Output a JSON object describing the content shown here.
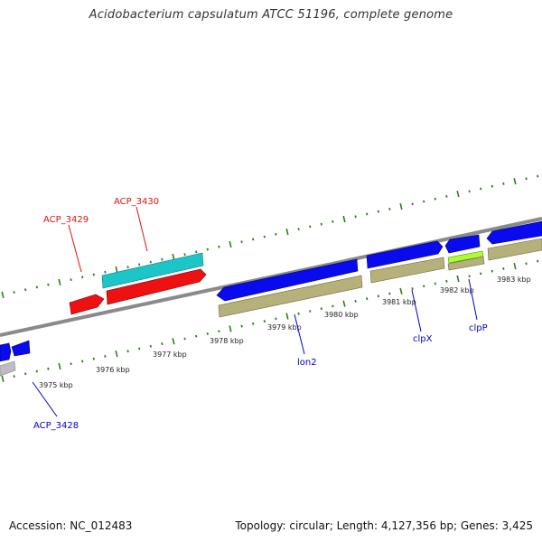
{
  "title": "Acidobacterium capsulatum ATCC 51196, complete genome",
  "footer": {
    "accession": "Accession: NC_012483",
    "summary": "Topology: circular; Length: 4,127,356 bp; Genes: 3,425"
  },
  "colors": {
    "background": "#ffffff",
    "backbone": "#8a8a8a",
    "tick": "#2e7d1f",
    "cds": "#0a0aee",
    "olive": "#b6b07a",
    "cyan": "#1cc6c8",
    "red": "#ee1111",
    "lime": "#aaff33",
    "grey": "#bdbdbd",
    "label_blue": "#0000cc",
    "label_red": "#dd1111"
  },
  "scale_labels": [
    "3975 kbp",
    "3976 kbp",
    "3977 kbp",
    "3978 kbp",
    "3979 kbp",
    "3980 kbp",
    "3981 kbp",
    "3982 kbp",
    "3983 kbp"
  ],
  "gene_labels": {
    "acp3429": "ACP_3429",
    "acp3430": "ACP_3430",
    "acp3428": "ACP_3428",
    "lon2": "lon2",
    "clpx": "clpX",
    "clpp": "clpP"
  }
}
